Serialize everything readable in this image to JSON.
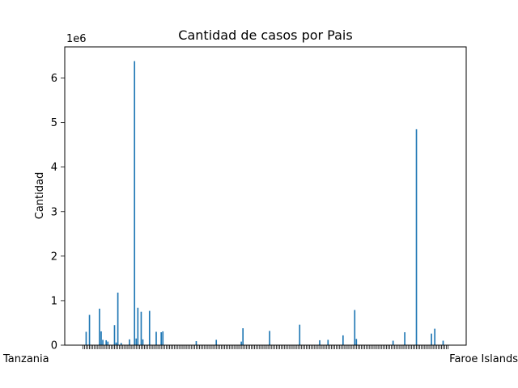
{
  "chart_data": {
    "type": "bar",
    "title": "Cantidad de casos por Pais",
    "xlabel": "",
    "ylabel": "Cantidad",
    "y_offset_label": "1e6",
    "ylim": [
      0,
      6700000
    ],
    "yticks": [
      0,
      1,
      2,
      3,
      4,
      5,
      6
    ],
    "y_tick_scale": 1000000,
    "grid": false,
    "bar_color": "#1f77b4",
    "category_count": 220,
    "visible_x_labels": {
      "first": "Tanzania",
      "last": "Faroe Islands"
    },
    "bars": [
      {
        "index": 2,
        "value": 300000
      },
      {
        "index": 4,
        "value": 680000
      },
      {
        "index": 10,
        "value": 820000
      },
      {
        "index": 11,
        "value": 310000
      },
      {
        "index": 12,
        "value": 120000
      },
      {
        "index": 14,
        "value": 110000
      },
      {
        "index": 15,
        "value": 80000
      },
      {
        "index": 19,
        "value": 450000
      },
      {
        "index": 20,
        "value": 60000
      },
      {
        "index": 21,
        "value": 1180000
      },
      {
        "index": 23,
        "value": 50000
      },
      {
        "index": 28,
        "value": 130000
      },
      {
        "index": 31,
        "value": 6380000
      },
      {
        "index": 32,
        "value": 150000
      },
      {
        "index": 33,
        "value": 840000
      },
      {
        "index": 35,
        "value": 750000
      },
      {
        "index": 36,
        "value": 130000
      },
      {
        "index": 40,
        "value": 770000
      },
      {
        "index": 44,
        "value": 300000
      },
      {
        "index": 47,
        "value": 290000
      },
      {
        "index": 48,
        "value": 310000
      },
      {
        "index": 68,
        "value": 90000
      },
      {
        "index": 80,
        "value": 120000
      },
      {
        "index": 95,
        "value": 80000
      },
      {
        "index": 96,
        "value": 380000
      },
      {
        "index": 112,
        "value": 320000
      },
      {
        "index": 130,
        "value": 460000
      },
      {
        "index": 142,
        "value": 110000
      },
      {
        "index": 147,
        "value": 120000
      },
      {
        "index": 156,
        "value": 220000
      },
      {
        "index": 163,
        "value": 790000
      },
      {
        "index": 164,
        "value": 140000
      },
      {
        "index": 186,
        "value": 100000
      },
      {
        "index": 193,
        "value": 290000
      },
      {
        "index": 200,
        "value": 4850000
      },
      {
        "index": 209,
        "value": 260000
      },
      {
        "index": 211,
        "value": 370000
      },
      {
        "index": 216,
        "value": 100000
      }
    ]
  }
}
